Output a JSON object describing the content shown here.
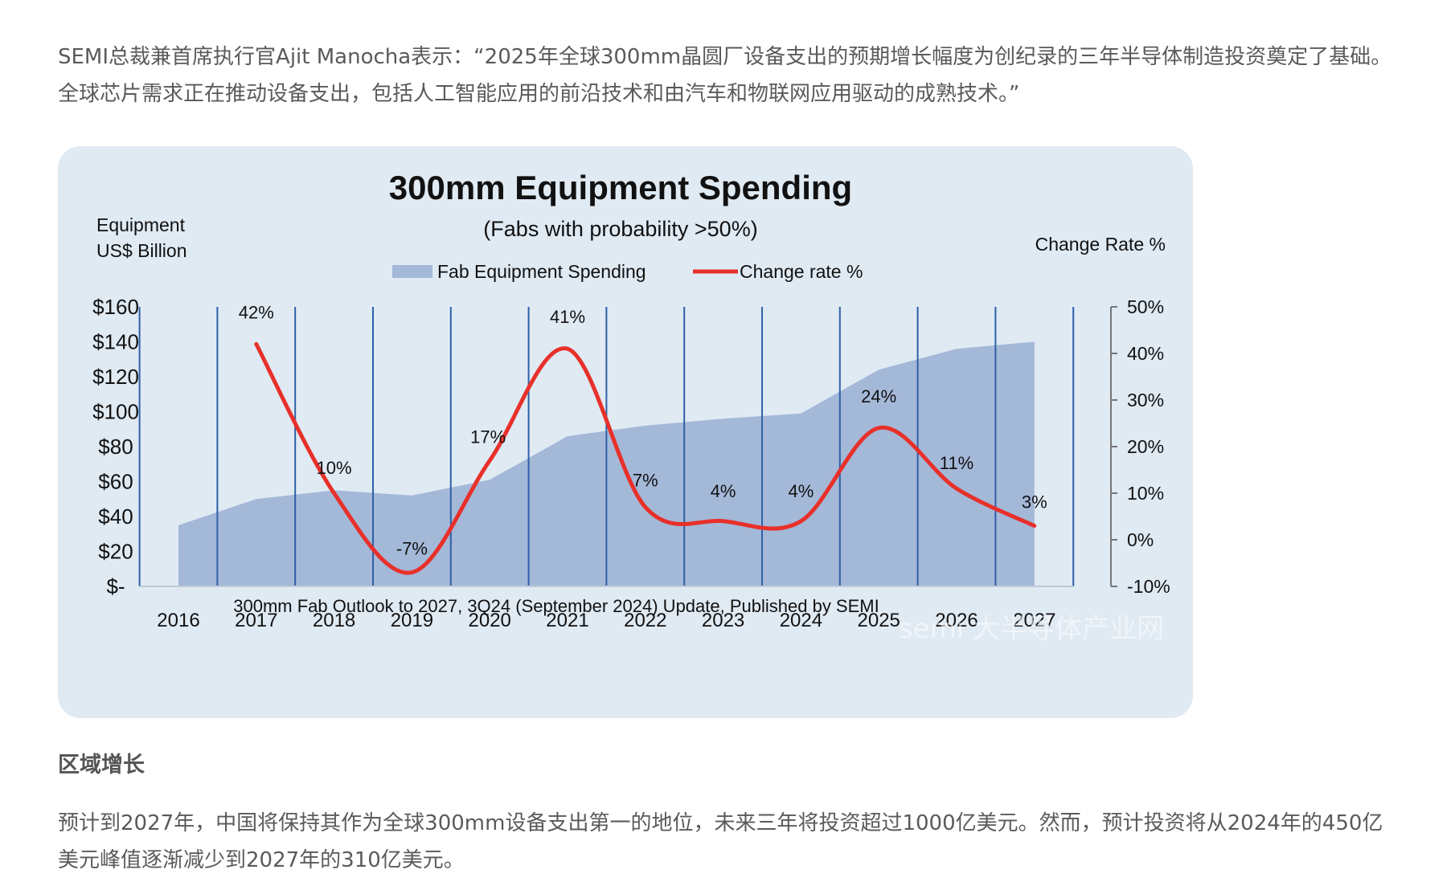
{
  "article": {
    "paragraph1": "SEMI总裁兼首席执行官Ajit Manocha表示：“2025年全球300mm晶圆厂设备支出的预期增长幅度为创纪录的三年半导体制造投资奠定了基础。全球芯片需求正在推动设备支出，包括人工智能应用的前沿技术和由汽车和物联网应用驱动的成熟技术。”",
    "heading": "区域增长",
    "paragraph2": "预计到2027年，中国将保持其作为全球300mm设备支出第一的地位，未来三年将投资超过1000亿美元。然而，预计投资将从2024年的450亿美元峰值逐渐减少到2027年的310亿美元。"
  },
  "chart_data": {
    "type": "area",
    "title": "300mm Equipment Spending",
    "subtitle": "(Fabs with probability >50%)",
    "ylabel_left_line1": "Equipment",
    "ylabel_left_line2": "US$ Billion",
    "ylabel_right": "Change Rate %",
    "source": "300mm Fab Outlook to 2027, 3Q24 (September 2024) Update, Published by SEMI",
    "watermark": "semi 大半导体产业网",
    "categories": [
      "2016",
      "2017",
      "2018",
      "2019",
      "2020",
      "2021",
      "2022",
      "2023",
      "2024",
      "2025",
      "2026",
      "2027"
    ],
    "ylim_left": [
      0,
      160
    ],
    "ylim_right": [
      -10,
      50
    ],
    "left_ticks": [
      "$-",
      "$20",
      "$40",
      "$60",
      "$80",
      "$100",
      "$120",
      "$140",
      "$160"
    ],
    "right_ticks": [
      "-10%",
      "0%",
      "10%",
      "20%",
      "30%",
      "40%",
      "50%"
    ],
    "grid": "vertical",
    "legend_position": "top-center",
    "series": [
      {
        "name": "Fab Equipment Spending",
        "kind": "area",
        "axis": "left",
        "color": "#a4b8d8",
        "values": [
          35,
          50,
          55,
          52,
          61,
          86,
          92,
          96,
          99,
          124,
          136,
          140
        ]
      },
      {
        "name": "Change rate %",
        "kind": "line",
        "axis": "right",
        "color": "#e8302a",
        "x": [
          "2017",
          "2018",
          "2019",
          "2020",
          "2021",
          "2022",
          "2023",
          "2024",
          "2025",
          "2026",
          "2027"
        ],
        "values": [
          42,
          10,
          -7,
          17,
          41,
          7,
          4,
          4,
          24,
          11,
          3
        ],
        "labels": [
          "42%",
          "10%",
          "-7%",
          "17%",
          "41%",
          "7%",
          "4%",
          "4%",
          "24%",
          "11%",
          "3%"
        ]
      }
    ],
    "colors": {
      "grid_line": "#2f5fa7",
      "card_bg": "#dfeaf3"
    }
  }
}
